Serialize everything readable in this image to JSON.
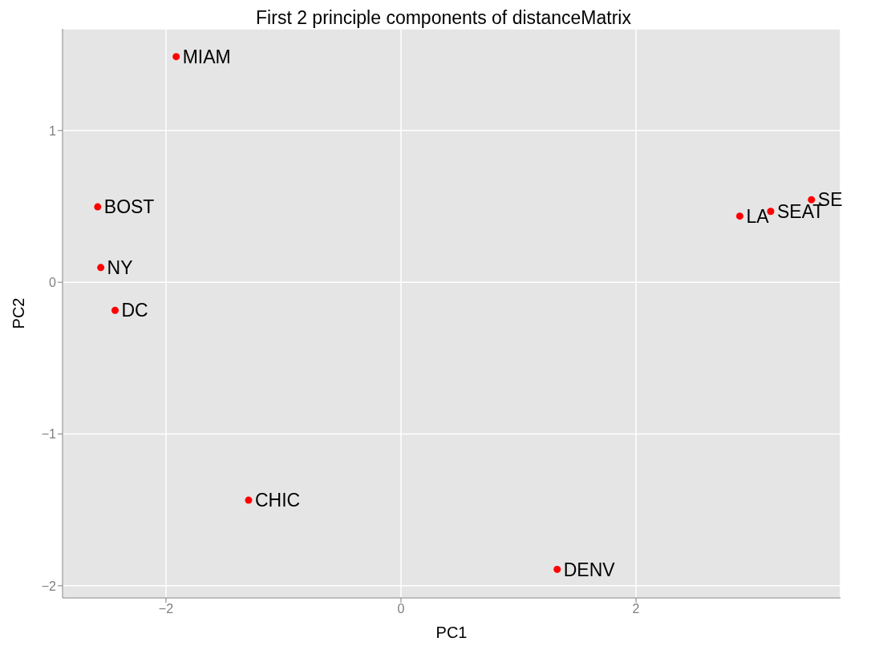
{
  "chart_data": {
    "type": "scatter",
    "title": "First 2 principle components of distanceMatrix",
    "xlabel": "PC1",
    "ylabel": "PC2",
    "x": [
      -1.913,
      -2.581,
      -2.555,
      -2.433,
      -1.297,
      1.329,
      2.883,
      3.146,
      3.493
    ],
    "values": [
      1.487,
      0.497,
      0.097,
      -0.185,
      -1.436,
      -1.892,
      0.436,
      0.467,
      0.544
    ],
    "color": "#ff0000",
    "marker": "circle",
    "annotations": [
      {
        "text": "MIAM",
        "x": -1.913,
        "y": 1.487
      },
      {
        "text": "BOST",
        "x": -2.581,
        "y": 0.497
      },
      {
        "text": "NY",
        "x": -2.555,
        "y": 0.097
      },
      {
        "text": "DC",
        "x": -2.433,
        "y": -0.185
      },
      {
        "text": "CHIC",
        "x": -1.297,
        "y": -1.436
      },
      {
        "text": "DENV",
        "x": 1.329,
        "y": -1.892
      },
      {
        "text": "LA",
        "x": 2.883,
        "y": 0.436
      },
      {
        "text": "SEAT",
        "x": 3.146,
        "y": 0.467
      },
      {
        "text": "SE",
        "x": 3.493,
        "y": 0.544
      }
    ],
    "xlim": [
      -2.88,
      3.74
    ],
    "ylim": [
      -2.08,
      1.67
    ],
    "xticks": [
      -2,
      0,
      2
    ],
    "yticks": [
      -2,
      -1,
      0,
      1
    ],
    "grid": true
  }
}
